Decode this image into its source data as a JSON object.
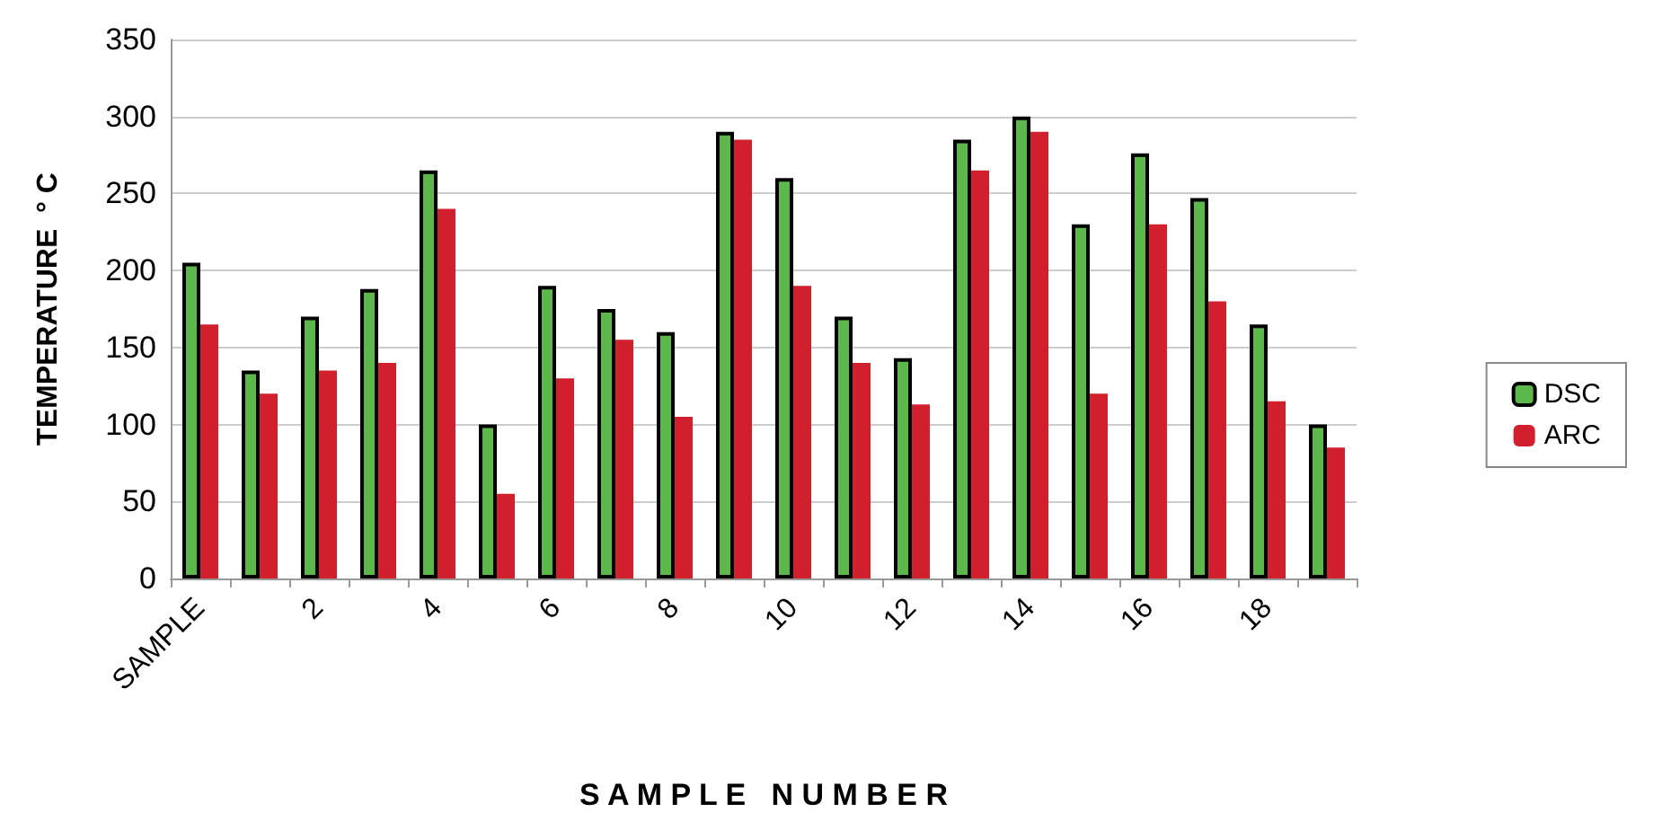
{
  "chart_data": {
    "type": "bar",
    "xlabel": "S A M P L E   N U M B E R",
    "ylabel": "TEMPERATURE  ° C",
    "categories": [
      "SAMPLE",
      null,
      "2",
      null,
      "4",
      null,
      "6",
      null,
      "8",
      null,
      "10",
      null,
      "12",
      null,
      "14",
      null,
      "16",
      null,
      "18",
      null
    ],
    "series": [
      {
        "name": "DSC",
        "color": "#5cb84a",
        "values": [
          205,
          135,
          170,
          188,
          265,
          100,
          190,
          175,
          160,
          290,
          260,
          170,
          143,
          285,
          300,
          230,
          276,
          247,
          165,
          100
        ]
      },
      {
        "name": "ARC",
        "color": "#d11f2e",
        "values": [
          165,
          120,
          135,
          140,
          240,
          55,
          130,
          155,
          105,
          285,
          190,
          140,
          113,
          265,
          290,
          120,
          230,
          180,
          115,
          85
        ]
      }
    ],
    "ylim": [
      0,
      350
    ],
    "yticks": [
      0,
      50,
      100,
      150,
      200,
      250,
      300,
      350
    ],
    "grid": "y",
    "legend": "right"
  }
}
